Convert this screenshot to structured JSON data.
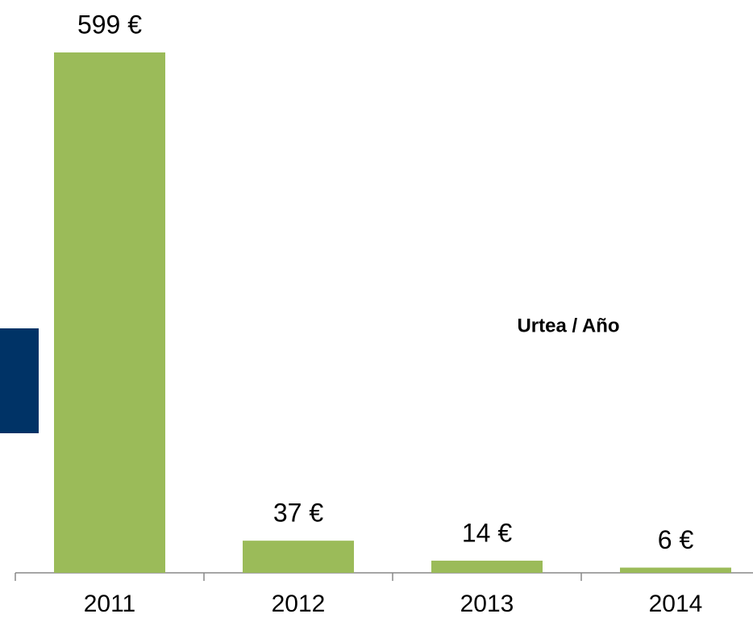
{
  "chart_data": {
    "type": "bar",
    "annotation": "Urtea / Año",
    "categories": [
      "2011",
      "2012",
      "2013",
      "2014"
    ],
    "values": [
      599,
      37,
      14,
      6
    ],
    "value_labels": [
      "599 €",
      "37 €",
      "14 €",
      "6 €"
    ],
    "color": "#9bbb59"
  }
}
